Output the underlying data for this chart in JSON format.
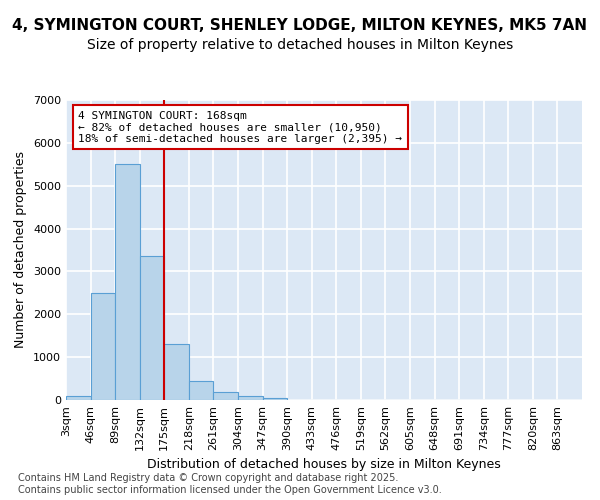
{
  "title_line1": "4, SYMINGTON COURT, SHENLEY LODGE, MILTON KEYNES, MK5 7AN",
  "title_line2": "Size of property relative to detached houses in Milton Keynes",
  "xlabel": "Distribution of detached houses by size in Milton Keynes",
  "ylabel": "Number of detached properties",
  "bar_values": [
    100,
    2500,
    5500,
    3350,
    1300,
    450,
    190,
    90,
    40,
    0,
    0,
    0,
    0,
    0,
    0,
    0,
    0,
    0,
    0,
    0,
    0
  ],
  "categories": [
    "3sqm",
    "46sqm",
    "89sqm",
    "132sqm",
    "175sqm",
    "218sqm",
    "261sqm",
    "304sqm",
    "347sqm",
    "390sqm",
    "433sqm",
    "476sqm",
    "519sqm",
    "562sqm",
    "605sqm",
    "648sqm",
    "691sqm",
    "734sqm",
    "777sqm",
    "820sqm",
    "863sqm"
  ],
  "bar_color": "#b8d4ea",
  "bar_edgecolor": "#5a9fd4",
  "background_color": "#dce8f5",
  "grid_color": "#ffffff",
  "vline_color": "#cc0000",
  "annotation_text": "4 SYMINGTON COURT: 168sqm\n← 82% of detached houses are smaller (10,950)\n18% of semi-detached houses are larger (2,395) →",
  "annotation_box_edgecolor": "#cc0000",
  "ylim": [
    0,
    7000
  ],
  "yticks": [
    0,
    1000,
    2000,
    3000,
    4000,
    5000,
    6000,
    7000
  ],
  "footer_text": "Contains HM Land Registry data © Crown copyright and database right 2025.\nContains public sector information licensed under the Open Government Licence v3.0.",
  "title_fontsize": 11,
  "subtitle_fontsize": 10,
  "axis_label_fontsize": 9,
  "tick_fontsize": 8,
  "annotation_fontsize": 8,
  "footer_fontsize": 7
}
